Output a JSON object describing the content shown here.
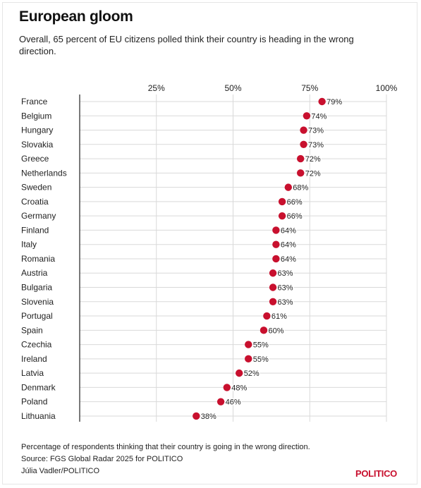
{
  "header": {
    "title": "European gloom",
    "subtitle": "Overall, 65 percent of EU citizens polled think their country is heading in the wrong direction."
  },
  "chart_data": {
    "type": "scatter",
    "orientation": "horizontal-dot",
    "x_ticks": [
      "25%",
      "50%",
      "75%",
      "100%"
    ],
    "xlim": [
      0,
      100
    ],
    "grid": true,
    "categories": [
      "France",
      "Belgium",
      "Hungary",
      "Slovakia",
      "Greece",
      "Netherlands",
      "Sweden",
      "Croatia",
      "Germany",
      "Finland",
      "Italy",
      "Romania",
      "Austria",
      "Bulgaria",
      "Slovenia",
      "Portugal",
      "Spain",
      "Czechia",
      "Ireland",
      "Latvia",
      "Denmark",
      "Poland",
      "Lithuania"
    ],
    "values": [
      79,
      74,
      73,
      73,
      72,
      72,
      68,
      66,
      66,
      64,
      64,
      64,
      63,
      63,
      63,
      61,
      60,
      55,
      55,
      52,
      48,
      46,
      38
    ],
    "labels": [
      "79%",
      "74%",
      "73%",
      "73%",
      "72%",
      "72%",
      "68%",
      "66%",
      "66%",
      "64%",
      "64%",
      "64%",
      "63%",
      "63%",
      "63%",
      "61%",
      "60%",
      "55%",
      "55%",
      "52%",
      "48%",
      "46%",
      "38%"
    ],
    "dot_color": "#c8102e",
    "label_outline_color": "#ffffff"
  },
  "footer": {
    "note": "Percentage of respondents thinking that their country is going in the wrong direction.",
    "source": "Source: FGS Global Radar 2025 for POLITICO",
    "credit": "Júlia Vadler/POLITICO",
    "brand": "POLITICO",
    "brand_color": "#c8102e"
  }
}
